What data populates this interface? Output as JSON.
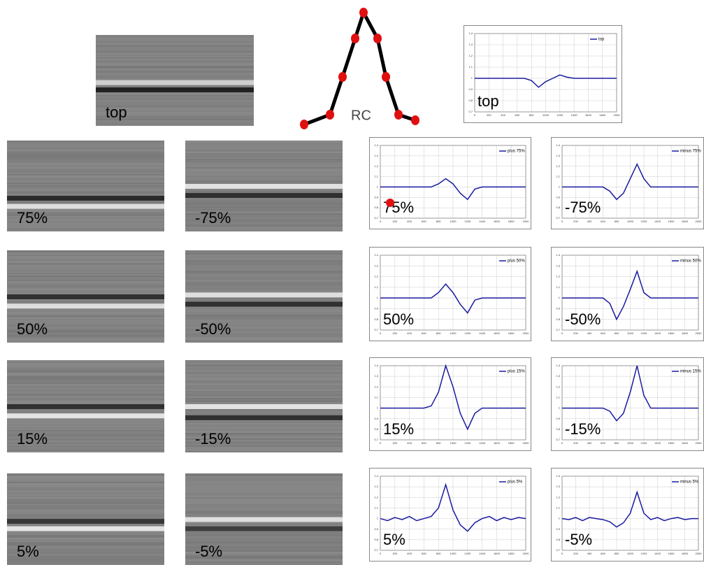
{
  "rc_label": "RC",
  "images": [
    {
      "label": "top"
    },
    {
      "label": "75%"
    },
    {
      "label": "-75%"
    },
    {
      "label": "50%"
    },
    {
      "label": "-50%"
    },
    {
      "label": "15%"
    },
    {
      "label": "-15%"
    },
    {
      "label": "5%"
    },
    {
      "label": "-5%"
    }
  ],
  "x": [
    0,
    100,
    200,
    300,
    400,
    500,
    600,
    700,
    800,
    900,
    1000,
    1100,
    1200,
    1300,
    1400,
    1500,
    1600,
    1700,
    1800,
    1900,
    2000
  ],
  "xlim": [
    0,
    2000
  ],
  "xticks": [
    0,
    200,
    400,
    600,
    800,
    1000,
    1200,
    1400,
    1600,
    1800,
    2000
  ],
  "ylim": [
    0.7,
    1.4
  ],
  "yticks": [
    {
      "value": 0.7,
      "label": "0,7"
    },
    {
      "value": 0.8,
      "label": "0,8"
    },
    {
      "value": 0.9,
      "label": "0,9"
    },
    1,
    {
      "value": 1.1,
      "label": "1,1"
    },
    {
      "value": 1.2,
      "label": "1,2"
    },
    {
      "value": 1.3,
      "label": "1,3"
    },
    {
      "value": 1.4,
      "label": "1,4"
    }
  ],
  "charts": [
    {
      "legend": "top",
      "label": "top",
      "values": [
        1,
        1,
        1,
        1,
        1,
        1,
        1,
        1,
        0.98,
        0.92,
        0.97,
        1,
        1.03,
        1.01,
        1,
        1,
        1,
        1,
        1,
        1,
        1
      ]
    },
    {
      "legend": "plus 75%",
      "label": "75%",
      "values": [
        1,
        1,
        1,
        1,
        1,
        1,
        1,
        1,
        1.03,
        1.08,
        1.03,
        0.94,
        0.88,
        0.98,
        1,
        1,
        1,
        1,
        1,
        1,
        1
      ]
    },
    {
      "legend": "minus 75%",
      "label": "-75%",
      "values": [
        1,
        1,
        1,
        1,
        1,
        1,
        1,
        0.96,
        0.88,
        0.94,
        1.08,
        1.22,
        1.08,
        1,
        1,
        1,
        1,
        1,
        1,
        1,
        1
      ]
    },
    {
      "legend": "plus 50%",
      "label": "50%",
      "values": [
        1,
        1,
        1,
        1,
        1,
        1,
        1,
        1,
        1.05,
        1.13,
        1.05,
        0.94,
        0.86,
        0.98,
        1,
        1,
        1,
        1,
        1,
        1,
        1
      ]
    },
    {
      "legend": "minus 50%",
      "label": "-50%",
      "values": [
        1,
        1,
        1,
        1,
        1,
        1,
        1,
        0.95,
        0.8,
        0.92,
        1.08,
        1.25,
        1.05,
        1,
        1,
        1,
        1,
        1,
        1,
        1,
        1
      ]
    },
    {
      "legend": "plus 15%",
      "label": "15%",
      "values": [
        1,
        1,
        1,
        1,
        1,
        1,
        1,
        1.02,
        1.15,
        1.4,
        1.2,
        0.95,
        0.8,
        0.95,
        1,
        1,
        1,
        1,
        1,
        1,
        1
      ]
    },
    {
      "legend": "minus 15%",
      "label": "-15%",
      "values": [
        1,
        1,
        1,
        1,
        1,
        1,
        1,
        0.97,
        0.88,
        0.95,
        1.15,
        1.4,
        1.12,
        1,
        1,
        1,
        1,
        1,
        1,
        1,
        1
      ]
    },
    {
      "legend": "plus 5%",
      "label": "5%",
      "values": [
        1,
        0.98,
        1.01,
        0.99,
        1.02,
        0.98,
        1,
        1.02,
        1.1,
        1.32,
        1.08,
        0.94,
        0.88,
        0.96,
        1,
        1.02,
        0.98,
        1.01,
        0.99,
        1.01,
        1
      ]
    },
    {
      "legend": "minus 5%",
      "label": "-5%",
      "values": [
        1,
        0.99,
        1.01,
        0.98,
        1.01,
        1,
        0.99,
        0.97,
        0.92,
        0.96,
        1.05,
        1.25,
        1.05,
        0.99,
        1.01,
        0.98,
        1,
        1.01,
        0.99,
        1,
        1
      ]
    }
  ]
}
